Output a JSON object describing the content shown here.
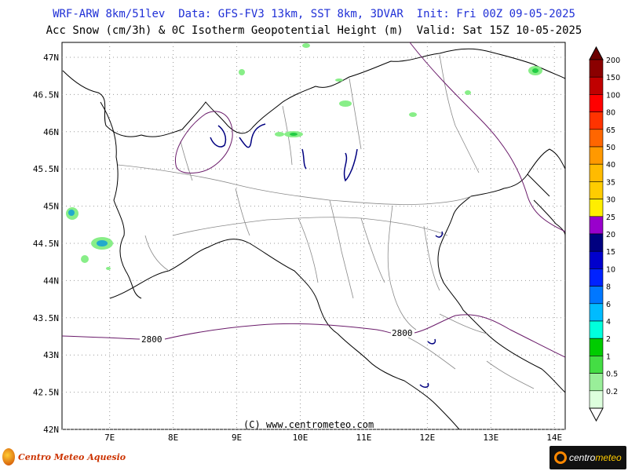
{
  "header": {
    "line1": "WRF-ARW 8km/51lev  Data: GFS-FV3 13km, SST 8km, 3DVAR  Init: Fri 00Z 09-05-2025",
    "line2": "Acc Snow (cm/3h) & 0C Isotherm Geopotential Height (m)  Valid: Sat 15Z 10-05-2025"
  },
  "axes": {
    "lon_labels": [
      "7E",
      "8E",
      "9E",
      "10E",
      "11E",
      "12E",
      "13E",
      "14E"
    ],
    "lon_values": [
      7,
      8,
      9,
      10,
      11,
      12,
      13,
      14
    ],
    "lat_labels": [
      "47N",
      "46.5N",
      "46N",
      "45.5N",
      "45N",
      "44.5N",
      "44N",
      "43.5N",
      "43N",
      "42.5N",
      "42N"
    ],
    "lat_values": [
      47,
      46.5,
      46,
      45.5,
      45,
      44.5,
      44,
      43.5,
      43,
      42.5,
      42
    ],
    "lon_range": [
      6.25,
      14.17
    ],
    "lat_range": [
      42.0,
      47.2
    ]
  },
  "contour": {
    "label_west": "2800",
    "label_east": "2800",
    "color": "#6a1b6a"
  },
  "colorbar": {
    "labels": [
      "200",
      "150",
      "100",
      "80",
      "65",
      "50",
      "40",
      "35",
      "30",
      "25",
      "20",
      "15",
      "10",
      "8",
      "6",
      "4",
      "2",
      "1",
      "0.5",
      "0.2"
    ],
    "colors": [
      "#8b0000",
      "#c00000",
      "#ff0000",
      "#ff3300",
      "#ff6600",
      "#ff9900",
      "#ffbb00",
      "#ffcc00",
      "#ffee00",
      "#9900cc",
      "#000080",
      "#0000cc",
      "#0022ff",
      "#0077ff",
      "#00bbff",
      "#00ffdd",
      "#00cc00",
      "#44dd44",
      "#99ee99",
      "#ddffdd"
    ]
  },
  "snow_color_light": "#88ee88",
  "snow_color_mid": "#22cc44",
  "footer": {
    "copyright": "(C) www.centrometeo.com",
    "logo_left": "Centro Meteo Aquesio",
    "logo_right_a": "centro",
    "logo_right_b": "meteo"
  }
}
